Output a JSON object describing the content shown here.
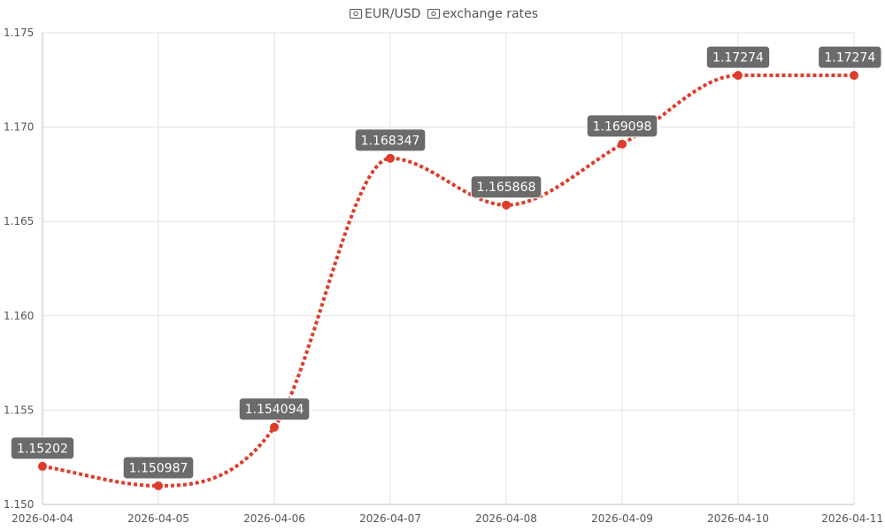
{
  "chart_title": {
    "pair": "EUR/USD",
    "suffix": "exchange rates",
    "icons": [
      "banknote-icon",
      "banknote-icon"
    ]
  },
  "chart_data": {
    "type": "line",
    "title": "EUR/USD exchange rates",
    "xlabel": "",
    "ylabel": "",
    "categories": [
      "2026-04-04",
      "2026-04-05",
      "2026-04-06",
      "2026-04-07",
      "2026-04-08",
      "2026-04-09",
      "2026-04-10",
      "2026-04-11"
    ],
    "series": [
      {
        "name": "",
        "values": [
          1.15202,
          1.150987,
          1.154094,
          1.168347,
          1.165868,
          1.169098,
          1.17274,
          1.17274
        ],
        "labels": [
          "1.15202",
          "1.150987",
          "1.154094",
          "1.168347",
          "1.165868",
          "1.169098",
          "1.17274",
          "1.17274"
        ],
        "color": "#dd3c2a",
        "line_style": "dotted",
        "smooth": true
      }
    ],
    "ylim": [
      1.15,
      1.175
    ],
    "yticks": [
      1.15,
      1.155,
      1.16,
      1.165,
      1.17,
      1.175
    ],
    "ytick_labels": [
      "1.150",
      "1.155",
      "1.160",
      "1.165",
      "1.170",
      "1.175"
    ],
    "grid": true,
    "legend": "none",
    "data_labels": true,
    "label_background": "#6b6b6b"
  }
}
